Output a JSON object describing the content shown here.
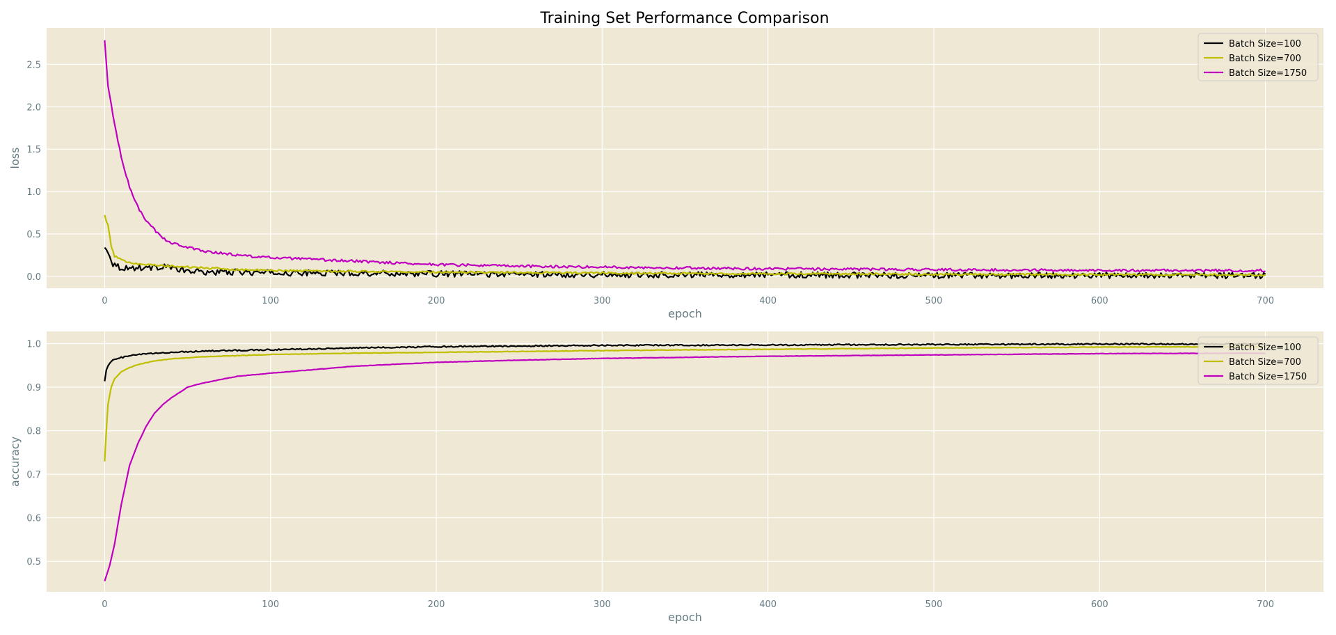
{
  "title": "Training Set Performance Comparison",
  "colors": {
    "background": "#eee8d5",
    "grid": "#ffffff",
    "axis_text": "#657b83",
    "series": [
      "#000000",
      "#bfbf00",
      "#bf00bf"
    ]
  },
  "chart_data": [
    {
      "type": "line",
      "title": "Training Set Performance Comparison",
      "xlabel": "epoch",
      "ylabel": "loss",
      "xlim": [
        -35,
        735
      ],
      "ylim": [
        -0.14,
        2.93
      ],
      "xticks": [
        0,
        100,
        200,
        300,
        400,
        500,
        600,
        700
      ],
      "yticks": [
        0.0,
        0.5,
        1.0,
        1.5,
        2.0,
        2.5
      ],
      "ytick_labels": [
        "0.0",
        "0.5",
        "1.0",
        "1.5",
        "2.0",
        "2.5"
      ],
      "grid": true,
      "legend": "top-right",
      "series": [
        {
          "name": "Batch Size=100",
          "color": "#000000",
          "noise": 0.035,
          "x": [
            0,
            2,
            5,
            10,
            15,
            20,
            25,
            30,
            37,
            45,
            60,
            80,
            100,
            150,
            200,
            300,
            400,
            500,
            600,
            700
          ],
          "y": [
            0.33,
            0.3,
            0.15,
            0.1,
            0.1,
            0.1,
            0.11,
            0.1,
            0.13,
            0.07,
            0.05,
            0.05,
            0.04,
            0.04,
            0.03,
            0.02,
            0.02,
            0.01,
            0.01,
            0.01
          ]
        },
        {
          "name": "Batch Size=700",
          "color": "#bfbf00",
          "noise": 0.012,
          "x": [
            0,
            2,
            4,
            6,
            10,
            15,
            20,
            30,
            40,
            60,
            80,
            100,
            150,
            200,
            300,
            400,
            500,
            600,
            700
          ],
          "y": [
            0.72,
            0.6,
            0.35,
            0.24,
            0.19,
            0.17,
            0.15,
            0.13,
            0.12,
            0.1,
            0.08,
            0.07,
            0.06,
            0.05,
            0.04,
            0.03,
            0.025,
            0.02,
            0.02
          ]
        },
        {
          "name": "Batch Size=1750",
          "color": "#bf00bf",
          "noise": 0.015,
          "x": [
            0,
            2,
            5,
            8,
            10,
            15,
            20,
            25,
            30,
            35,
            40,
            50,
            60,
            80,
            100,
            150,
            200,
            250,
            300,
            400,
            500,
            600,
            700
          ],
          "y": [
            2.78,
            2.25,
            1.9,
            1.6,
            1.4,
            1.05,
            0.82,
            0.65,
            0.55,
            0.45,
            0.4,
            0.34,
            0.3,
            0.25,
            0.22,
            0.18,
            0.14,
            0.12,
            0.11,
            0.09,
            0.08,
            0.07,
            0.07
          ]
        }
      ]
    },
    {
      "type": "line",
      "xlabel": "epoch",
      "ylabel": "accuracy",
      "xlim": [
        -35,
        735
      ],
      "ylim": [
        0.43,
        1.028
      ],
      "xticks": [
        0,
        100,
        200,
        300,
        400,
        500,
        600,
        700
      ],
      "yticks": [
        0.5,
        0.6,
        0.7,
        0.8,
        0.9,
        1.0
      ],
      "ytick_labels": [
        "0.5",
        "0.6",
        "0.7",
        "0.8",
        "0.9",
        "1.0"
      ],
      "grid": true,
      "legend": "top-right",
      "series": [
        {
          "name": "Batch Size=100",
          "color": "#000000",
          "noise": 0.0015,
          "x": [
            0,
            1,
            3,
            5,
            10,
            20,
            40,
            60,
            100,
            150,
            200,
            300,
            400,
            500,
            600,
            700
          ],
          "y": [
            0.915,
            0.94,
            0.955,
            0.962,
            0.968,
            0.975,
            0.98,
            0.983,
            0.986,
            0.99,
            0.993,
            0.996,
            0.997,
            0.998,
            0.999,
            0.999
          ]
        },
        {
          "name": "Batch Size=700",
          "color": "#bfbf00",
          "noise": 0.0006,
          "x": [
            0,
            1,
            2,
            4,
            6,
            10,
            15,
            20,
            30,
            40,
            60,
            100,
            150,
            200,
            300,
            400,
            500,
            600,
            700
          ],
          "y": [
            0.73,
            0.8,
            0.86,
            0.9,
            0.92,
            0.935,
            0.945,
            0.952,
            0.96,
            0.965,
            0.97,
            0.975,
            0.978,
            0.98,
            0.984,
            0.987,
            0.99,
            0.992,
            0.993
          ]
        },
        {
          "name": "Batch Size=1750",
          "color": "#bf00bf",
          "noise": 0.0004,
          "x": [
            0,
            3,
            6,
            10,
            15,
            20,
            25,
            30,
            35,
            40,
            50,
            60,
            80,
            100,
            150,
            200,
            250,
            300,
            400,
            500,
            600,
            700
          ],
          "y": [
            0.455,
            0.49,
            0.54,
            0.63,
            0.72,
            0.77,
            0.81,
            0.84,
            0.86,
            0.875,
            0.9,
            0.91,
            0.925,
            0.932,
            0.948,
            0.957,
            0.962,
            0.966,
            0.971,
            0.974,
            0.977,
            0.978
          ]
        }
      ]
    }
  ]
}
